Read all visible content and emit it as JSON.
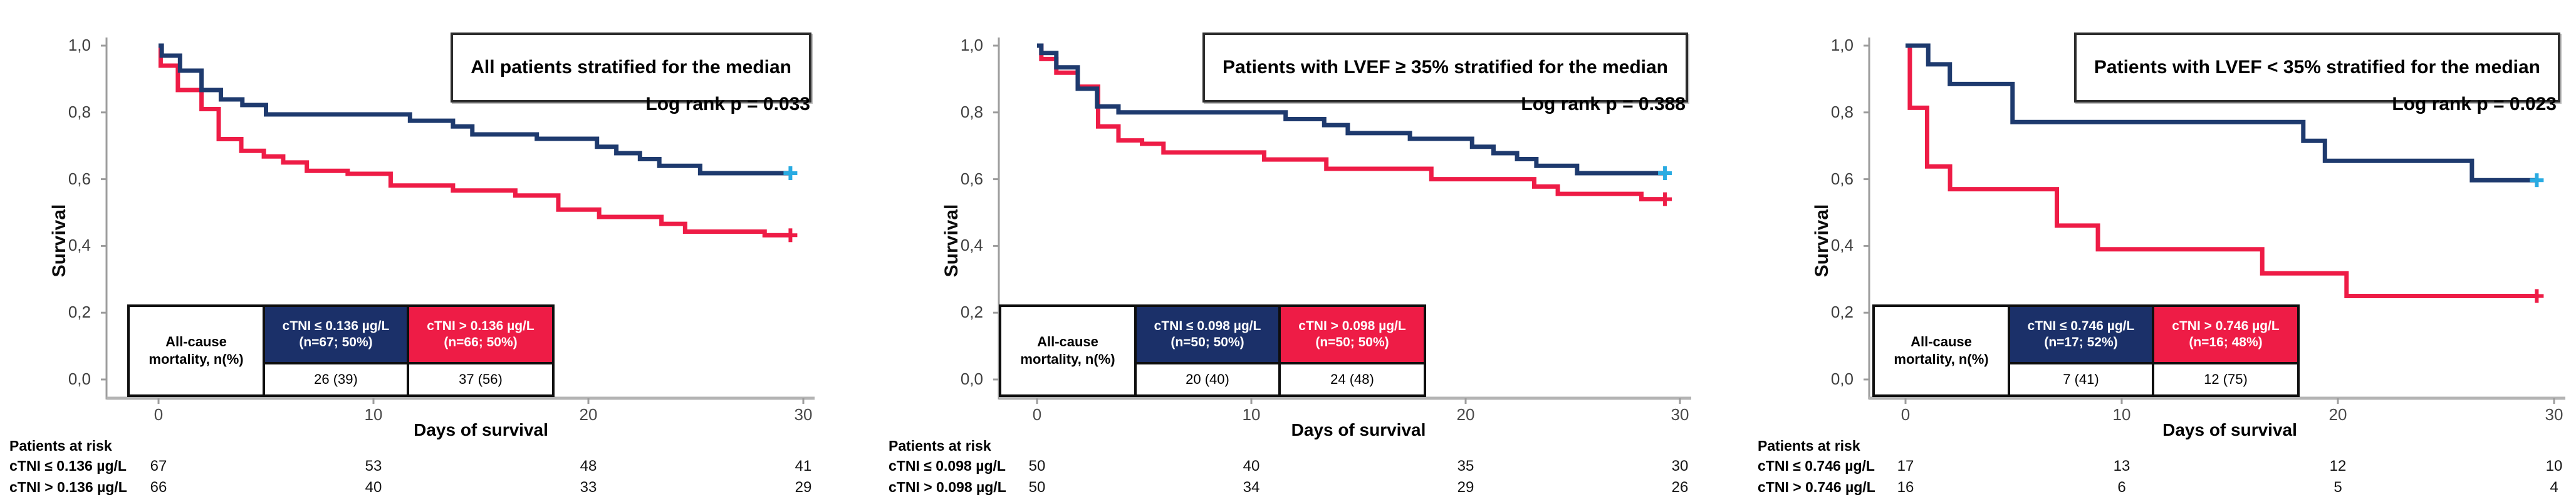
{
  "figure": {
    "background": "#ffffff"
  },
  "colors": {
    "blue": "#1e3a6e",
    "red": "#ee1c46",
    "censor_blue": "#29abe2",
    "table_blue": "#1b3069",
    "table_red": "#ee1c46",
    "axis": "#9d9d9d"
  },
  "chart_data": [
    {
      "type": "line",
      "title": "All patients stratified for the median",
      "log_rank": "Log rank p = 0.033",
      "ylabel": "Survival",
      "xlabel": "Days of survival",
      "ylim": [
        0.0,
        1.0
      ],
      "xlim": [
        0,
        30
      ],
      "grid": "off",
      "y_ticks": [
        "1,0",
        "0,8",
        "0,6",
        "0,4",
        "0,2",
        "0,0"
      ],
      "x_ticks": [
        "0",
        "10",
        "20",
        "30"
      ],
      "table": {
        "row_header": [
          "All-cause",
          "mortality, n(%)"
        ],
        "groups": [
          {
            "line1": "cTNI ≤ 0.136 µg/L",
            "line2": "(n=67; 50%)",
            "value": "26 (39)"
          },
          {
            "line1": "cTNI > 0.136 µg/L",
            "line2": "(n=66; 50%)",
            "value": "37 (56)"
          }
        ]
      },
      "at_risk": {
        "label": "Patients at risk",
        "rows": [
          {
            "label": "cTNI ≤ 0.136 µg/L",
            "values": [
              "67",
              "53",
              "48",
              "41"
            ]
          },
          {
            "label": "cTNI > 0.136 µg/L",
            "values": [
              "66",
              "40",
              "33",
              "29"
            ]
          }
        ]
      },
      "series": [
        {
          "name": "cTNI ≤ 0.136 µg/L",
          "color": "blue",
          "steps": [
            [
              0,
              1.0
            ],
            [
              0.15,
              0.97
            ],
            [
              1.0,
              0.925
            ],
            [
              2.0,
              0.867
            ],
            [
              2.9,
              0.839
            ],
            [
              3.9,
              0.822
            ],
            [
              5.0,
              0.794
            ],
            [
              11.7,
              0.775
            ],
            [
              13.7,
              0.758
            ],
            [
              14.6,
              0.734
            ],
            [
              17.6,
              0.721
            ],
            [
              20.4,
              0.697
            ],
            [
              21.3,
              0.678
            ],
            [
              22.4,
              0.66
            ],
            [
              23.3,
              0.64
            ],
            [
              25.2,
              0.618
            ],
            [
              29.4,
              0.618
            ]
          ],
          "censor": [
            29.4,
            0.618
          ]
        },
        {
          "name": "cTNI > 0.136 µg/L",
          "color": "red",
          "steps": [
            [
              0,
              1.0
            ],
            [
              0.1,
              0.94
            ],
            [
              0.9,
              0.867
            ],
            [
              2.0,
              0.81
            ],
            [
              2.8,
              0.72
            ],
            [
              3.85,
              0.685
            ],
            [
              4.9,
              0.668
            ],
            [
              5.8,
              0.65
            ],
            [
              6.9,
              0.625
            ],
            [
              8.8,
              0.616
            ],
            [
              10.8,
              0.581
            ],
            [
              13.7,
              0.566
            ],
            [
              16.6,
              0.551
            ],
            [
              18.6,
              0.509
            ],
            [
              20.5,
              0.487
            ],
            [
              23.4,
              0.466
            ],
            [
              24.5,
              0.443
            ],
            [
              28.2,
              0.432
            ],
            [
              29.4,
              0.432
            ]
          ],
          "censor": [
            29.4,
            0.432
          ]
        }
      ]
    },
    {
      "type": "line",
      "title": "Patients with LVEF ≥ 35% stratified for the median",
      "log_rank": "Log rank p = 0.388",
      "ylabel": "Survival",
      "xlabel": "Days of survival",
      "ylim": [
        0.0,
        1.0
      ],
      "xlim": [
        0,
        30
      ],
      "grid": "off",
      "y_ticks": [
        "1,0",
        "0,8",
        "0,6",
        "0,4",
        "0,2",
        "0,0"
      ],
      "x_ticks": [
        "0",
        "10",
        "20",
        "30"
      ],
      "table": {
        "row_header": [
          "All-cause",
          "mortality, n(%)"
        ],
        "groups": [
          {
            "line1": "cTNI ≤ 0.098 µg/L",
            "line2": "(n=50; 50%)",
            "value": "20 (40)"
          },
          {
            "line1": "cTNI > 0.098 µg/L",
            "line2": "(n=50; 50%)",
            "value": "24 (48)"
          }
        ]
      },
      "at_risk": {
        "label": "Patients at risk",
        "rows": [
          {
            "label": "cTNI ≤ 0.098 µg/L",
            "values": [
              "50",
              "40",
              "35",
              "30"
            ]
          },
          {
            "label": "cTNI > 0.098 µg/L",
            "values": [
              "50",
              "34",
              "29",
              "26"
            ]
          }
        ]
      },
      "series": [
        {
          "name": "cTNI ≤ 0.098 µg/L",
          "color": "blue",
          "steps": [
            [
              0,
              1.0
            ],
            [
              0.2,
              0.978
            ],
            [
              0.9,
              0.935
            ],
            [
              1.9,
              0.871
            ],
            [
              2.8,
              0.818
            ],
            [
              3.8,
              0.8
            ],
            [
              11.6,
              0.78
            ],
            [
              13.4,
              0.762
            ],
            [
              14.5,
              0.738
            ],
            [
              17.4,
              0.721
            ],
            [
              20.3,
              0.697
            ],
            [
              21.3,
              0.678
            ],
            [
              22.4,
              0.66
            ],
            [
              23.3,
              0.64
            ],
            [
              25.2,
              0.618
            ],
            [
              29.3,
              0.618
            ]
          ],
          "censor": [
            29.3,
            0.618
          ]
        },
        {
          "name": "cTNI > 0.098 µg/L",
          "color": "red",
          "steps": [
            [
              0,
              1.0
            ],
            [
              0.2,
              0.96
            ],
            [
              0.9,
              0.919
            ],
            [
              1.9,
              0.877
            ],
            [
              2.85,
              0.758
            ],
            [
              3.8,
              0.716
            ],
            [
              4.9,
              0.706
            ],
            [
              5.9,
              0.68
            ],
            [
              10.6,
              0.659
            ],
            [
              13.5,
              0.631
            ],
            [
              18.4,
              0.6
            ],
            [
              23.2,
              0.578
            ],
            [
              24.3,
              0.556
            ],
            [
              28.2,
              0.54
            ],
            [
              29.3,
              0.54
            ]
          ],
          "censor": [
            29.3,
            0.54
          ]
        }
      ]
    },
    {
      "type": "line",
      "title": "Patients with LVEF < 35% stratified for the median",
      "log_rank": "Log rank p = 0.023",
      "ylabel": "Survival",
      "xlabel": "Days of survival",
      "ylim": [
        0.0,
        1.0
      ],
      "xlim": [
        0,
        30
      ],
      "grid": "off",
      "y_ticks": [
        "1,0",
        "0,8",
        "0,6",
        "0,4",
        "0,2",
        "0,0"
      ],
      "x_ticks": [
        "0",
        "10",
        "20",
        "30"
      ],
      "table": {
        "row_header": [
          "All-cause",
          "mortality, n(%)"
        ],
        "groups": [
          {
            "line1": "cTNI ≤ 0.746 µg/L",
            "line2": "(n=17; 52%)",
            "value": "7 (41)"
          },
          {
            "line1": "cTNI > 0.746 µg/L",
            "line2": "(n=16; 48%)",
            "value": "12 (75)"
          }
        ]
      },
      "at_risk": {
        "label": "Patients at risk",
        "rows": [
          {
            "label": "cTNI ≤ 0.746 µg/L",
            "values": [
              "17",
              "13",
              "12",
              "10"
            ]
          },
          {
            "label": "cTNI > 0.746 µg/L",
            "values": [
              "16",
              "6",
              "5",
              "4"
            ]
          }
        ]
      },
      "series": [
        {
          "name": "cTNI ≤ 0.746 µg/L",
          "color": "blue",
          "steps": [
            [
              0,
              1.0
            ],
            [
              1.05,
              0.944
            ],
            [
              2.05,
              0.885
            ],
            [
              4.95,
              0.771
            ],
            [
              18.4,
              0.715
            ],
            [
              19.4,
              0.655
            ],
            [
              26.2,
              0.597
            ],
            [
              29.2,
              0.597
            ]
          ],
          "censor": [
            29.2,
            0.597
          ]
        },
        {
          "name": "cTNI > 0.746 µg/L",
          "color": "red",
          "steps": [
            [
              0,
              1.0
            ],
            [
              0.2,
              0.814
            ],
            [
              1.0,
              0.638
            ],
            [
              2.06,
              0.57
            ],
            [
              7.0,
              0.461
            ],
            [
              8.9,
              0.39
            ],
            [
              16.5,
              0.318
            ],
            [
              20.4,
              0.25
            ],
            [
              29.2,
              0.25
            ]
          ],
          "censor": [
            29.2,
            0.25
          ]
        }
      ]
    }
  ]
}
